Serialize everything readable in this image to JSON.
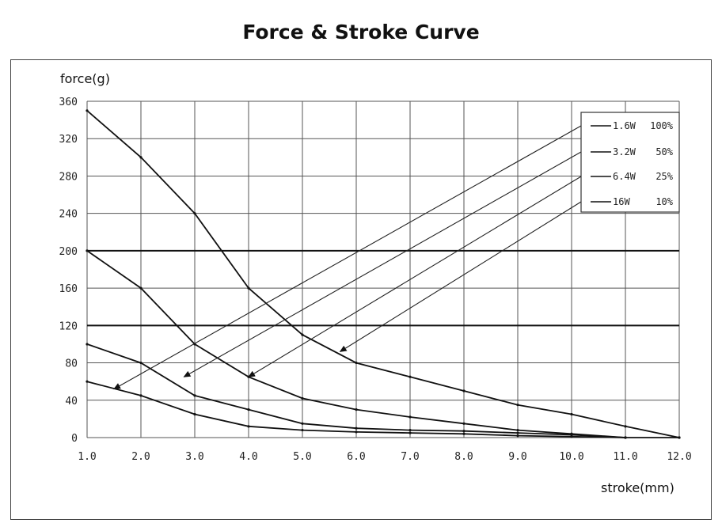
{
  "chart_data": {
    "type": "line",
    "title": "Force & Stroke Curve",
    "ylabel": "force(g)",
    "xlabel": "stroke(mm)",
    "xlim": [
      1.0,
      12.0
    ],
    "ylim": [
      0,
      360
    ],
    "xticks": [
      "1.0",
      "2.0",
      "3.0",
      "4.0",
      "5.0",
      "6.0",
      "7.0",
      "8.0",
      "9.0",
      "10.0",
      "11.0",
      "12.0"
    ],
    "yticks": [
      "0",
      "40",
      "80",
      "120",
      "160",
      "200",
      "240",
      "280",
      "320",
      "360"
    ],
    "grid": true,
    "legend_position": "top-right",
    "series": [
      {
        "name": "1.6W 100%",
        "x": [
          1.0,
          2.0,
          3.0,
          4.0,
          5.0,
          6.0,
          7.0,
          8.0,
          9.0,
          10.0,
          11.0,
          12.0
        ],
        "y": [
          60,
          45,
          25,
          12,
          8,
          6,
          5,
          4,
          2,
          1,
          0,
          0
        ]
      },
      {
        "name": "3.2W 50%",
        "x": [
          1.0,
          2.0,
          3.0,
          4.0,
          5.0,
          6.0,
          7.0,
          8.0,
          9.0,
          10.0,
          11.0
        ],
        "y": [
          100,
          80,
          45,
          30,
          15,
          10,
          8,
          7,
          5,
          3,
          0
        ]
      },
      {
        "name": "6.4W 25%",
        "x": [
          1.0,
          2.0,
          3.0,
          4.0,
          5.0,
          6.0,
          7.0,
          8.0,
          9.0,
          10.0,
          11.0
        ],
        "y": [
          200,
          160,
          100,
          65,
          42,
          30,
          22,
          15,
          8,
          4,
          0
        ]
      },
      {
        "name": "16W 10%",
        "x": [
          1.0,
          2.0,
          3.0,
          4.0,
          5.0,
          6.0,
          7.0,
          8.0,
          9.0,
          10.0,
          11.0,
          12.0
        ],
        "y": [
          350,
          300,
          240,
          160,
          110,
          80,
          65,
          50,
          35,
          25,
          12,
          0
        ]
      }
    ],
    "arrows": [
      {
        "series": "1.6W 100%",
        "tip": [
          1.5,
          52
        ]
      },
      {
        "series": "3.2W 50%",
        "tip": [
          2.8,
          65
        ]
      },
      {
        "series": "6.4W 25%",
        "tip": [
          4.0,
          65
        ]
      },
      {
        "series": "16W 10%",
        "tip": [
          5.7,
          92
        ]
      }
    ],
    "emphasized_gridlines_y": [
      120,
      200
    ]
  }
}
